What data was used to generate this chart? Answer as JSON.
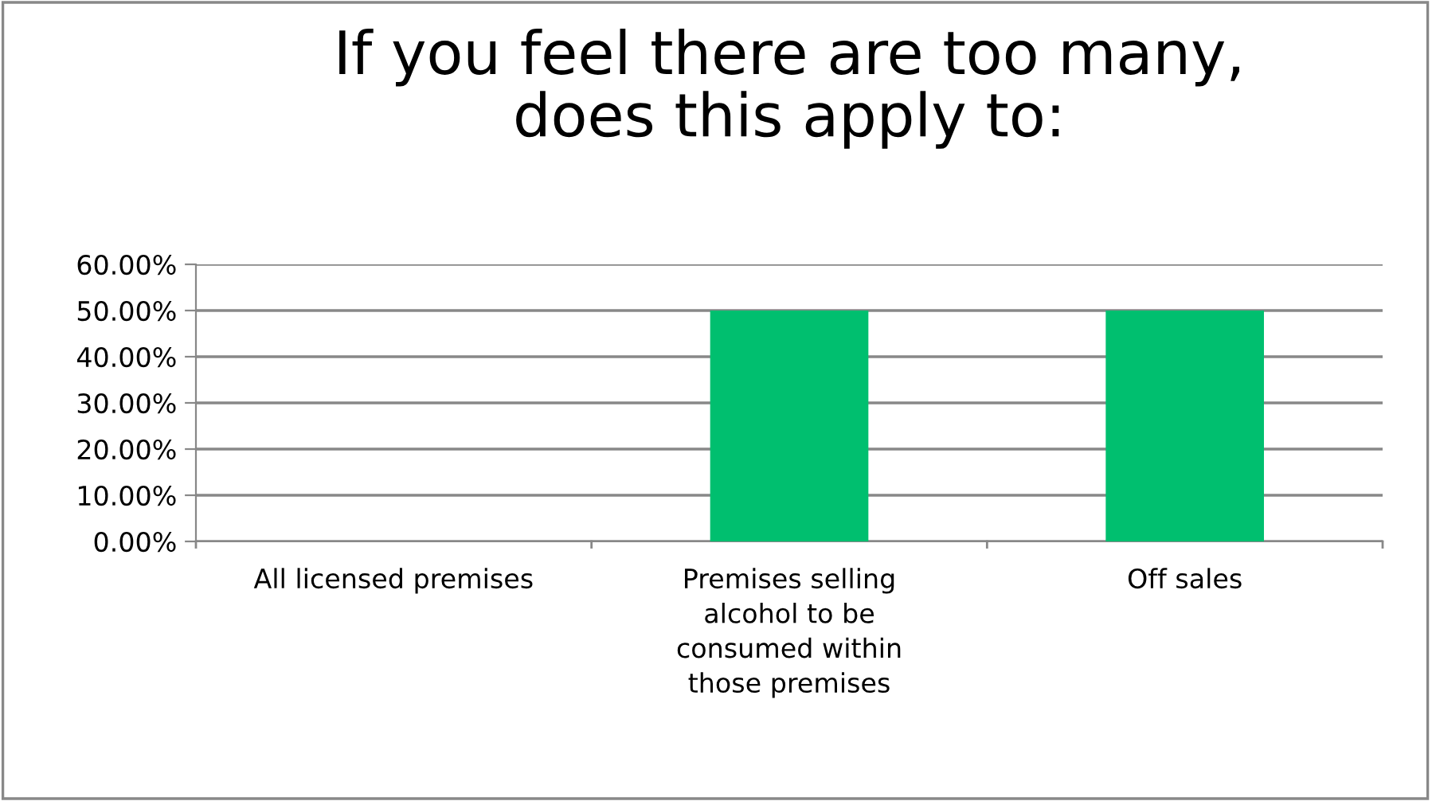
{
  "chart_data": {
    "type": "bar",
    "title": "If you feel there are too many,\ndoes this apply to:",
    "categories": [
      "All licensed premises",
      "Premises selling\nalcohol to be\nconsumed within\nthose premises",
      "Off sales"
    ],
    "values": [
      0,
      50,
      50
    ],
    "color": "#00bf6f",
    "ylim": [
      0,
      60
    ],
    "yticks": [
      {
        "value": 0,
        "label": "0.00%"
      },
      {
        "value": 10,
        "label": "10.00%"
      },
      {
        "value": 20,
        "label": "20.00%"
      },
      {
        "value": 30,
        "label": "30.00%"
      },
      {
        "value": 40,
        "label": "40.00%"
      },
      {
        "value": 50,
        "label": "50.00%"
      },
      {
        "value": 60,
        "label": "60.00%"
      }
    ],
    "grid": "y",
    "legend": false
  }
}
